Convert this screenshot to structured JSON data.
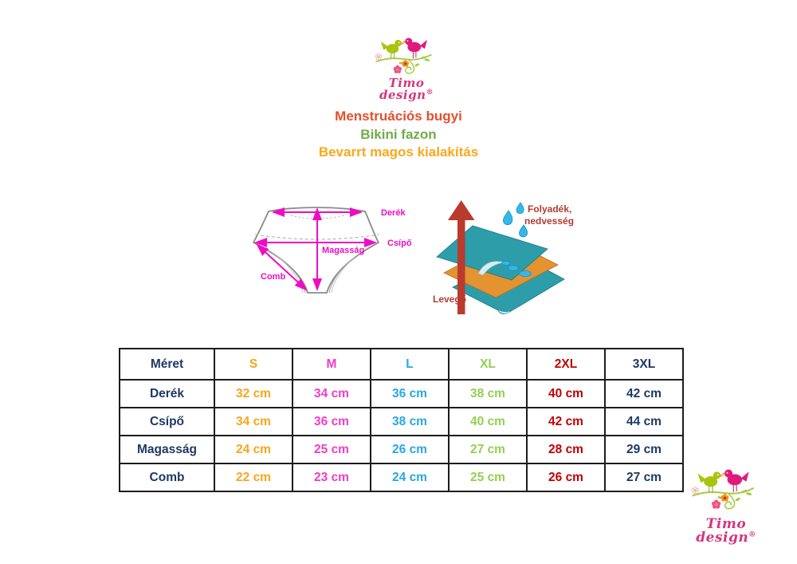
{
  "brand": {
    "name": "Timo design",
    "registered_mark": "®",
    "text_color": "#d6357f"
  },
  "title": {
    "line1": "Menstruációs bugyi",
    "line2": "Bikini fazon",
    "line3": "Bevarrt magos kialakítás",
    "line1_color": "#e4502e",
    "line2_color": "#6fad47",
    "line3_color": "#f9a81b"
  },
  "measure_diagram": {
    "waist_label": "Derék",
    "hip_label": "Csípő",
    "height_label": "Magasság",
    "thigh_label": "Comb",
    "arrow_color": "#ed0dc2",
    "outline_color": "#8a8a8a"
  },
  "fabric_diagram": {
    "moisture_label_line1": "Folyadék,",
    "moisture_label_line2": "nedvesség",
    "air_label": "Levegő",
    "label_color": "#b23b33",
    "teal_layer_color": "#2d9daa",
    "orange_layer_color": "#e3932f",
    "drop_color": "#35b7ea",
    "air_arrow_color": "#bb3a2e"
  },
  "size_table": {
    "corner_header": "Méret",
    "row_label_color": "#1f3864",
    "columns": [
      {
        "label": "S",
        "color": "#f9a51a"
      },
      {
        "label": "M",
        "color": "#ee3ec8"
      },
      {
        "label": "L",
        "color": "#29a8e0"
      },
      {
        "label": "XL",
        "color": "#92d050"
      },
      {
        "label": "2XL",
        "color": "#c00000"
      },
      {
        "label": "3XL",
        "color": "#1f3864"
      }
    ],
    "rows": [
      {
        "label": "Derék",
        "values": [
          "32 cm",
          "34 cm",
          "36 cm",
          "38 cm",
          "40 cm",
          "42 cm"
        ]
      },
      {
        "label": "Csípő",
        "values": [
          "34 cm",
          "36 cm",
          "38 cm",
          "40 cm",
          "42 cm",
          "44 cm"
        ]
      },
      {
        "label": "Magasság",
        "values": [
          "24 cm",
          "25 cm",
          "26 cm",
          "27 cm",
          "28 cm",
          "29 cm"
        ]
      },
      {
        "label": "Comb",
        "values": [
          "22 cm",
          "23 cm",
          "24 cm",
          "25 cm",
          "26 cm",
          "27 cm"
        ]
      }
    ]
  }
}
